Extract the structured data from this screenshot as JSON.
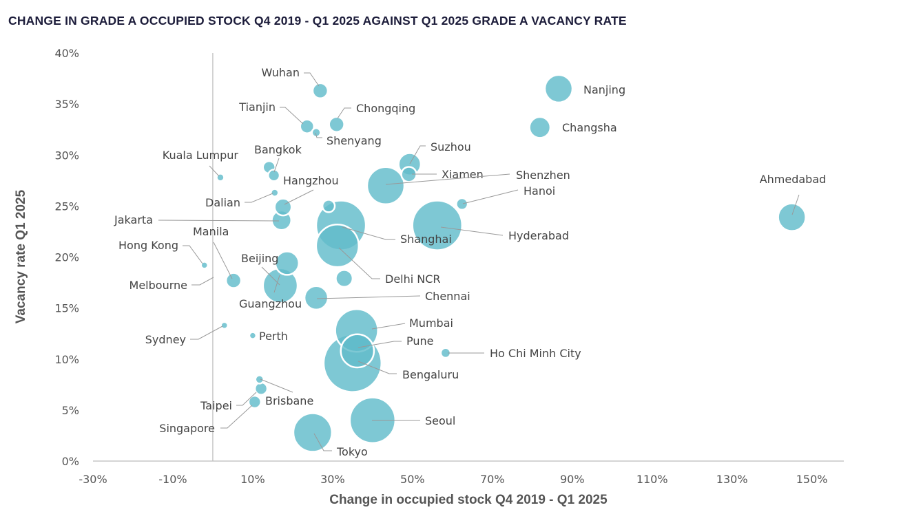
{
  "chart_data": {
    "type": "scatter",
    "title": "CHANGE IN GRADE A OCCUPIED STOCK Q4 2019 - Q1 2025 AGAINST Q1 2025 GRADE A VACANCY RATE",
    "xlabel": "Change in occupied stock Q4 2019 - Q1 2025",
    "ylabel": "Vacancy rate Q1 2025",
    "xlim": [
      -30,
      158
    ],
    "ylim": [
      0,
      40
    ],
    "x_ticks": [
      "-30%",
      "-10%",
      "10%",
      "30%",
      "50%",
      "70%",
      "90%",
      "110%",
      "130%",
      "150%"
    ],
    "y_ticks": [
      "0%",
      "5%",
      "10%",
      "15%",
      "20%",
      "25%",
      "30%",
      "35%",
      "40%"
    ],
    "grid": false,
    "bubble_color": "#62bccb",
    "points": [
      {
        "name": "Wuhan",
        "x": 26.9,
        "y": 36.3,
        "size": 1.2
      },
      {
        "name": "Nanjing",
        "x": 86.6,
        "y": 36.5,
        "size": 4
      },
      {
        "name": "Changsha",
        "x": 81.9,
        "y": 32.7,
        "size": 2.3
      },
      {
        "name": "Chongqing",
        "x": 31.0,
        "y": 33.0,
        "size": 1.2
      },
      {
        "name": "Tianjin",
        "x": 23.6,
        "y": 32.8,
        "size": 1
      },
      {
        "name": "Shenyang",
        "x": 25.9,
        "y": 32.2,
        "size": 0.4
      },
      {
        "name": "Suzhou",
        "x": 49.3,
        "y": 29.1,
        "size": 2.6
      },
      {
        "name": "Xiamen",
        "x": 49.1,
        "y": 28.1,
        "size": 1.2
      },
      {
        "name": "",
        "x": 14.1,
        "y": 28.8,
        "size": 0.8
      },
      {
        "name": "Bangkok",
        "x": 15.3,
        "y": 28.0,
        "size": 0.7
      },
      {
        "name": "Kuala Lumpur",
        "x": 1.9,
        "y": 27.8,
        "size": 0.3
      },
      {
        "name": "Shenzhen",
        "x": 43.3,
        "y": 27.0,
        "size": 7.3
      },
      {
        "name": "Dalian",
        "x": 15.5,
        "y": 26.3,
        "size": 0.3
      },
      {
        "name": "Hanoi",
        "x": 62.4,
        "y": 25.2,
        "size": 0.7
      },
      {
        "name": "Hangzhou",
        "x": 17.6,
        "y": 24.9,
        "size": 1.5
      },
      {
        "name": "",
        "x": 29.0,
        "y": 25.0,
        "size": 0.8
      },
      {
        "name": "Ahmedabad",
        "x": 145,
        "y": 23.9,
        "size": 4
      },
      {
        "name": "Jakarta",
        "x": 17.2,
        "y": 23.6,
        "size": 2
      },
      {
        "name": "Shanghai",
        "x": 32.1,
        "y": 23.1,
        "size": 13
      },
      {
        "name": "Hyderabad",
        "x": 56.2,
        "y": 23.1,
        "size": 13
      },
      {
        "name": "Delhi NCR",
        "x": 31.2,
        "y": 21.1,
        "size": 9.6
      },
      {
        "name": "Hong Kong",
        "x": -2.1,
        "y": 19.2,
        "size": 0.25
      },
      {
        "name": "Beijing",
        "x": 18.6,
        "y": 19.4,
        "size": 2.9
      },
      {
        "name": "Manila",
        "x": 5.2,
        "y": 17.7,
        "size": 1.2
      },
      {
        "name": "",
        "x": 32.9,
        "y": 17.9,
        "size": 1.5
      },
      {
        "name": "Guangzhou",
        "x": 16.9,
        "y": 17.2,
        "size": 6.3
      },
      {
        "name": "Chennai",
        "x": 25.9,
        "y": 16.0,
        "size": 2.9
      },
      {
        "name": "Melbourne",
        "x": 0.2,
        "y": 18.0,
        "size": 0
      },
      {
        "name": "Sydney",
        "x": 2.9,
        "y": 13.3,
        "size": 0.25
      },
      {
        "name": "Perth",
        "x": 10.0,
        "y": 12.3,
        "size": 0.25
      },
      {
        "name": "Mumbai",
        "x": 36.0,
        "y": 12.8,
        "size": 9.6
      },
      {
        "name": "Pune",
        "x": 36.2,
        "y": 10.8,
        "size": 5.8
      },
      {
        "name": "Bengaluru",
        "x": 35.0,
        "y": 9.6,
        "size": 17.6
      },
      {
        "name": "Ho Chi Minh City",
        "x": 58.3,
        "y": 10.6,
        "size": 0.5
      },
      {
        "name": "Brisbane",
        "x": 11.7,
        "y": 8.0,
        "size": 0.36
      },
      {
        "name": "Taipei",
        "x": 12.1,
        "y": 7.1,
        "size": 0.8
      },
      {
        "name": "Singapore",
        "x": 10.5,
        "y": 5.8,
        "size": 0.8
      },
      {
        "name": "Seoul",
        "x": 40.0,
        "y": 4.0,
        "size": 10.9
      },
      {
        "name": "Tokyo",
        "x": 25.0,
        "y": 2.8,
        "size": 7.8
      }
    ]
  }
}
